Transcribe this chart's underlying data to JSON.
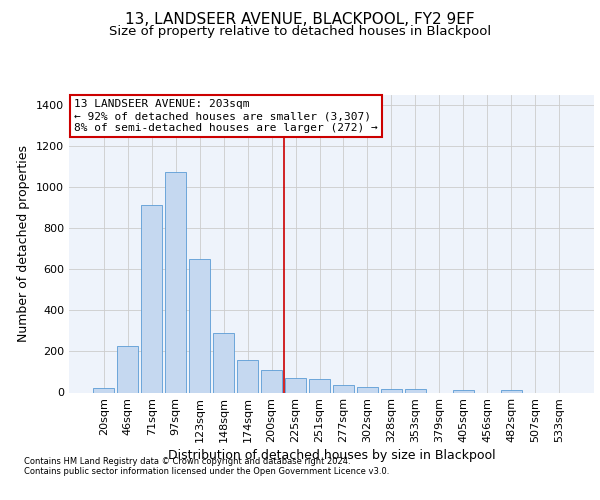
{
  "title1": "13, LANDSEER AVENUE, BLACKPOOL, FY2 9EF",
  "title2": "Size of property relative to detached houses in Blackpool",
  "xlabel": "Distribution of detached houses by size in Blackpool",
  "ylabel": "Number of detached properties",
  "categories": [
    "20sqm",
    "46sqm",
    "71sqm",
    "97sqm",
    "123sqm",
    "148sqm",
    "174sqm",
    "200sqm",
    "225sqm",
    "251sqm",
    "277sqm",
    "302sqm",
    "328sqm",
    "353sqm",
    "379sqm",
    "405sqm",
    "456sqm",
    "482sqm",
    "507sqm",
    "533sqm"
  ],
  "values": [
    20,
    225,
    915,
    1075,
    650,
    290,
    160,
    110,
    70,
    68,
    38,
    27,
    15,
    15,
    0,
    10,
    0,
    10,
    0,
    0
  ],
  "bar_color": "#c5d8f0",
  "bar_edge_color": "#5b9bd5",
  "grid_color": "#cccccc",
  "bg_color": "#eef3fb",
  "vline_color": "#cc0000",
  "vline_x_index": 7,
  "annotation_line1": "13 LANDSEER AVENUE: 203sqm",
  "annotation_line2": "← 92% of detached houses are smaller (3,307)",
  "annotation_line3": "8% of semi-detached houses are larger (272) →",
  "ylim": [
    0,
    1450
  ],
  "yticks": [
    0,
    200,
    400,
    600,
    800,
    1000,
    1200,
    1400
  ],
  "footnote1": "Contains HM Land Registry data © Crown copyright and database right 2024.",
  "footnote2": "Contains public sector information licensed under the Open Government Licence v3.0.",
  "title1_fontsize": 11,
  "title2_fontsize": 9.5,
  "xlabel_fontsize": 9,
  "ylabel_fontsize": 9,
  "tick_fontsize": 8,
  "annotation_fontsize": 8,
  "footnote_fontsize": 6
}
